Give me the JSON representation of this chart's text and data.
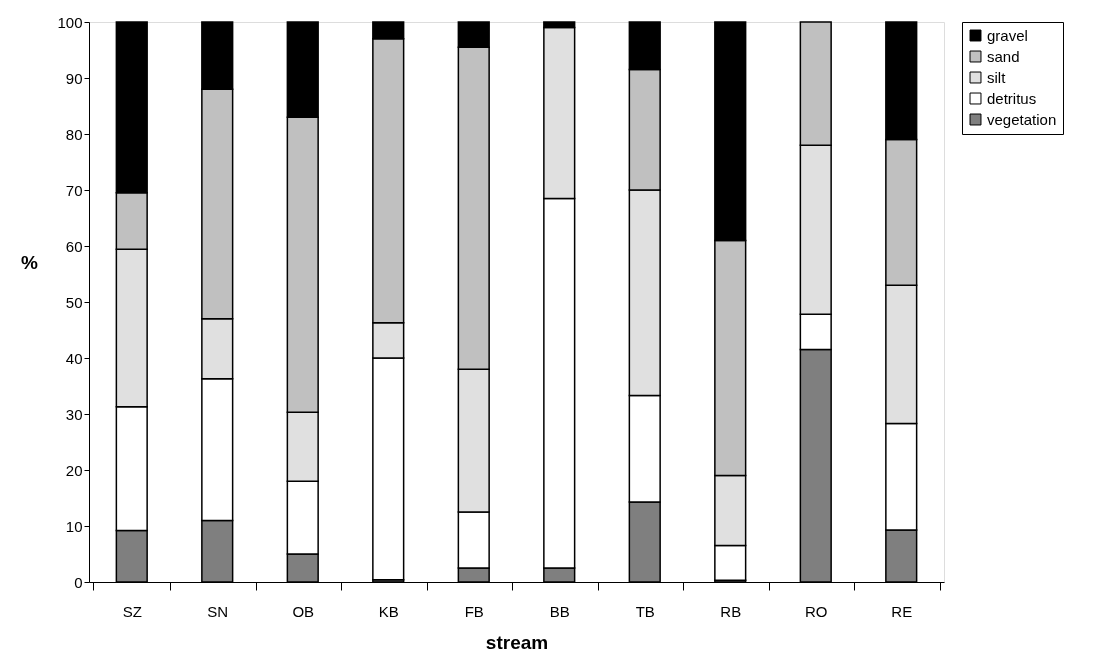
{
  "chart_data": {
    "type": "bar",
    "stacked": true,
    "xlabel": "stream",
    "ylabel": "%",
    "categories": [
      "SZ",
      "SN",
      "OB",
      "KB",
      "FB",
      "BB",
      "TB",
      "RB",
      "RO",
      "RE"
    ],
    "series": [
      {
        "name": "vegetation",
        "color": "#7f7f7f",
        "values": [
          9.2,
          11,
          5,
          0.4,
          2.5,
          2.5,
          14.3,
          0.3,
          41.5,
          9.3
        ]
      },
      {
        "name": "detritus",
        "color": "#ffffff",
        "values": [
          22.1,
          25.3,
          13,
          39.6,
          10,
          66,
          19,
          6.2,
          6.3,
          19
        ]
      },
      {
        "name": "silt",
        "color": "#e0e0e0",
        "values": [
          28.1,
          10.7,
          12.3,
          6.3,
          25.5,
          30.5,
          36.7,
          12.5,
          30.2,
          24.7
        ]
      },
      {
        "name": "sand",
        "color": "#c0c0c0",
        "values": [
          10.1,
          41,
          52.7,
          50.7,
          57.5,
          null,
          21.5,
          42,
          22,
          26
        ]
      },
      {
        "name": "gravel",
        "color": "#000000",
        "values": [
          30.5,
          12,
          17,
          3,
          4.5,
          1,
          8.5,
          39,
          null,
          21
        ]
      }
    ],
    "ylim": [
      0,
      100
    ],
    "yticks": [
      0,
      10,
      20,
      30,
      40,
      50,
      60,
      70,
      80,
      90,
      100
    ],
    "grid": false,
    "legend": "right"
  }
}
